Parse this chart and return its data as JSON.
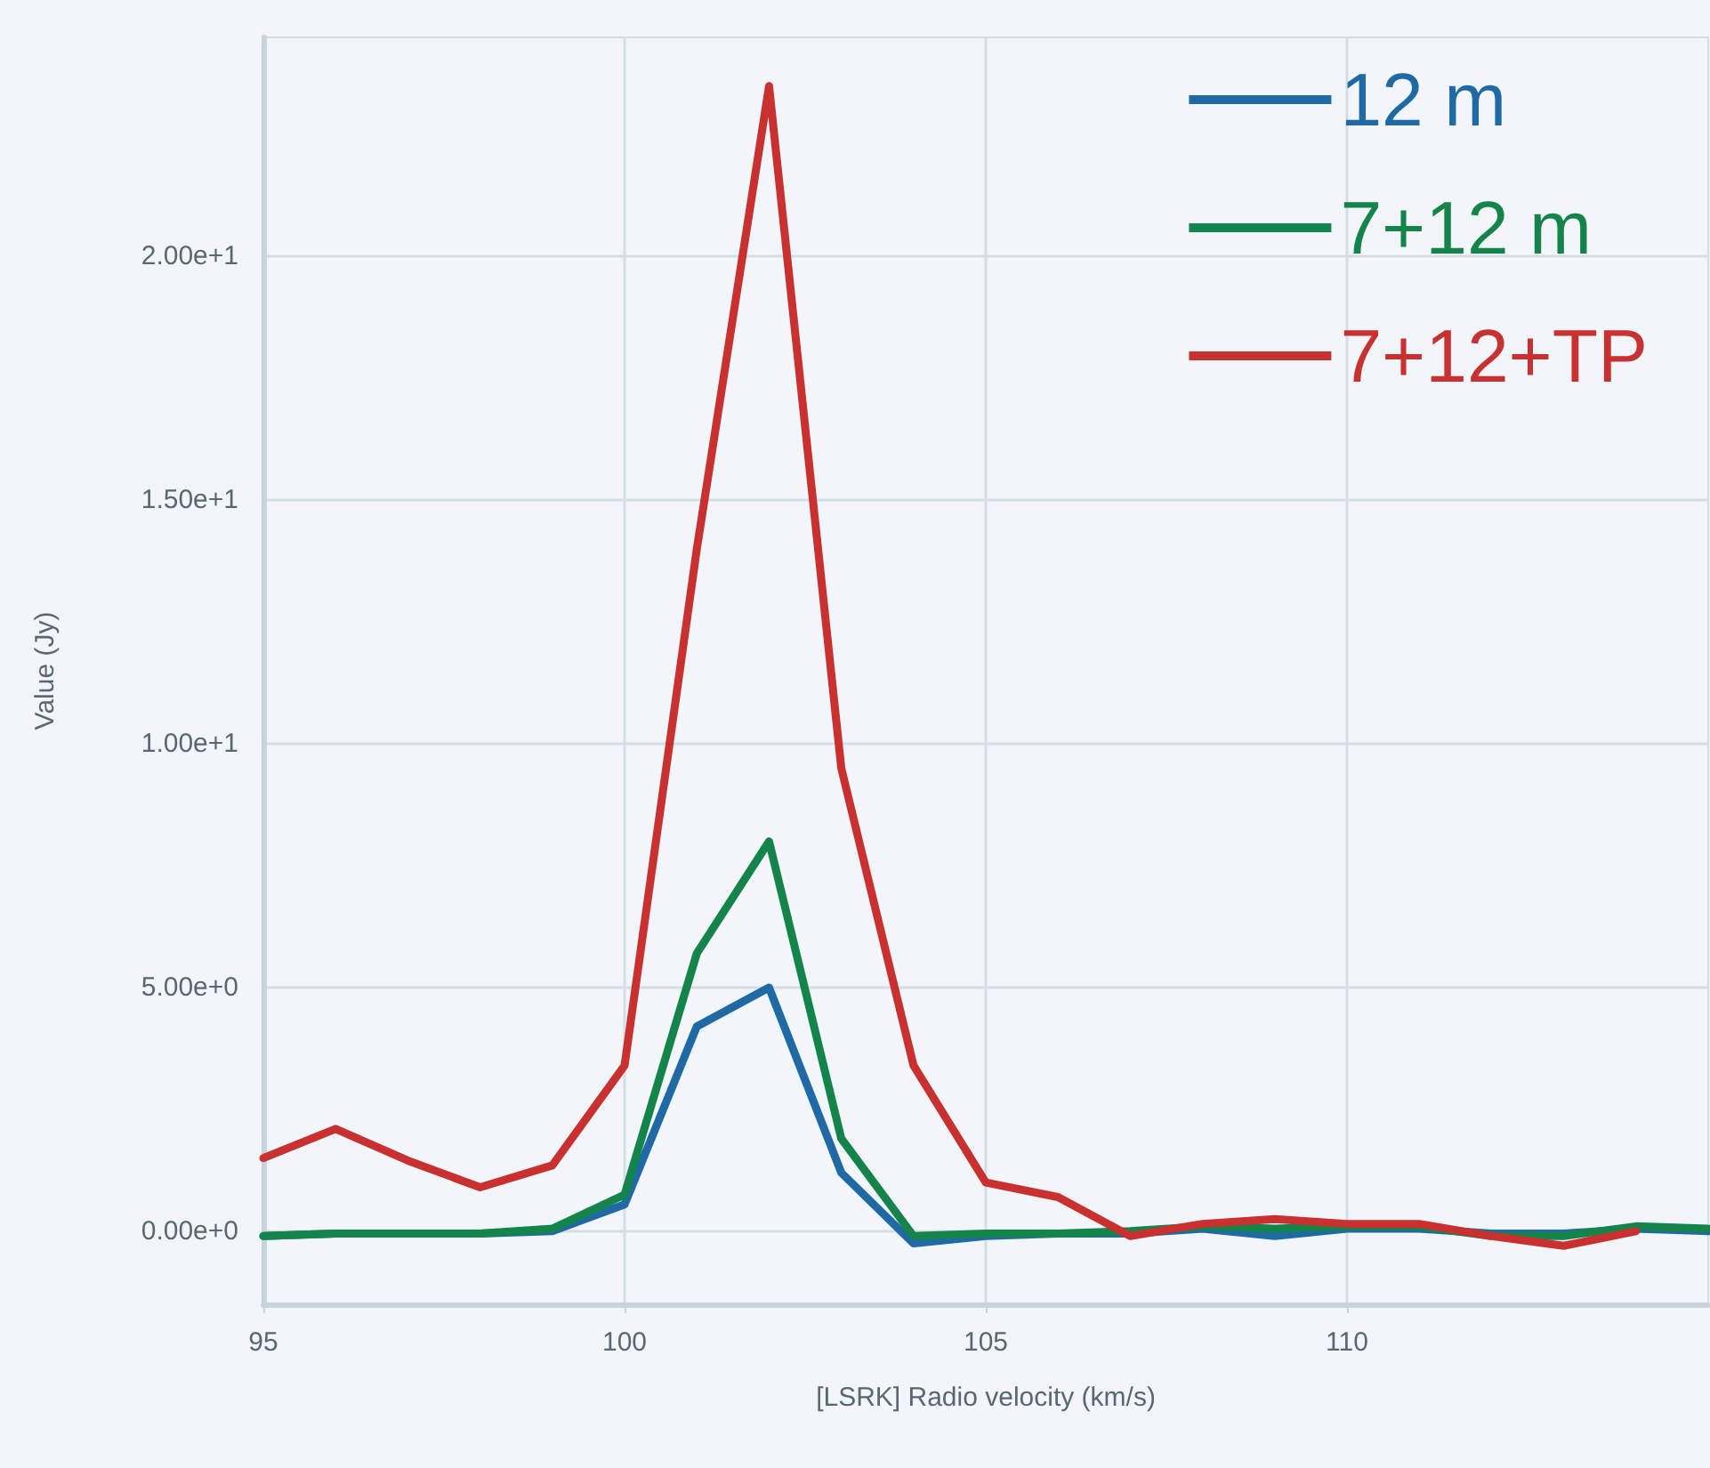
{
  "chart_data": {
    "type": "line",
    "xlabel": "[LSRK] Radio velocity (km/s)",
    "ylabel": "Value (Jy)",
    "x": [
      95,
      96,
      97,
      98,
      99,
      100,
      101,
      102,
      103,
      104,
      105,
      106,
      107,
      108,
      109,
      110,
      111,
      112,
      113,
      114,
      115
    ],
    "series": [
      {
        "name": "12 m",
        "color": "#1f6aa5",
        "values": [
          -0.1,
          -0.05,
          -0.05,
          -0.05,
          0,
          0.55,
          4.2,
          5.0,
          1.2,
          -0.25,
          -0.1,
          -0.05,
          -0.05,
          0.05,
          -0.1,
          0.05,
          0.05,
          -0.05,
          -0.05,
          0.05,
          0
        ]
      },
      {
        "name": "7+12 m",
        "color": "#15844a",
        "values": [
          -0.1,
          -0.05,
          -0.05,
          -0.05,
          0.05,
          0.75,
          5.7,
          8.0,
          1.9,
          -0.1,
          -0.05,
          -0.05,
          0,
          0.1,
          0.05,
          0.1,
          0.1,
          -0.1,
          -0.1,
          0.1,
          0.05
        ]
      },
      {
        "name": "7+12+TP",
        "color": "#c8312f",
        "values": [
          1.5,
          2.1,
          1.45,
          0.9,
          1.35,
          3.4,
          14.0,
          23.5,
          9.5,
          3.4,
          1.0,
          0.7,
          -0.1,
          0.15,
          0.25,
          0.15,
          0.15,
          -0.1,
          -0.3,
          0.0,
          null
        ]
      }
    ],
    "xlim": [
      95,
      115
    ],
    "xticks": [
      95,
      100,
      105,
      110
    ],
    "ylim": [
      -1.5,
      24.5
    ],
    "yticks": [
      {
        "value": 0,
        "label": "0.00e+0"
      },
      {
        "value": 5,
        "label": "5.00e+0"
      },
      {
        "value": 10,
        "label": "1.00e+1"
      },
      {
        "value": 15,
        "label": "1.50e+1"
      },
      {
        "value": 20,
        "label": "2.00e+1"
      }
    ],
    "grid": true,
    "legend": "top right",
    "marker": "none",
    "line_style": "solid"
  }
}
